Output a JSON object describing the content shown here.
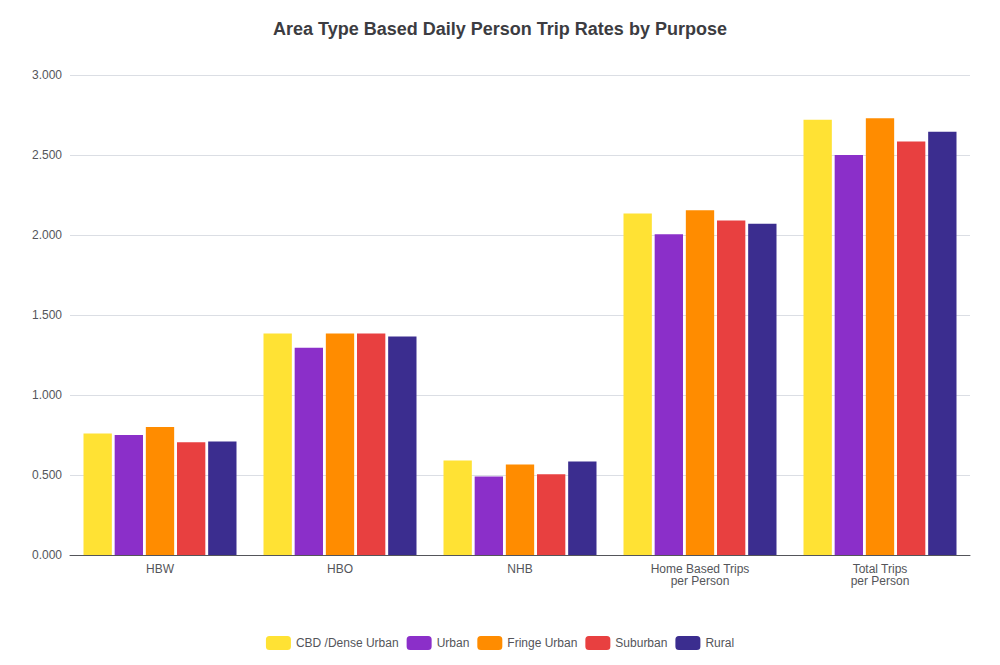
{
  "chart_data": {
    "type": "bar",
    "title": "Area Type Based Daily Person Trip Rates by Purpose",
    "categories": [
      "HBW",
      "HBO",
      "NHB",
      "Home Based Trips\nper Person",
      "Total Trips\nper Person"
    ],
    "series": [
      {
        "name": "CBD /Dense Urban",
        "color": "#FFE234",
        "values": [
          0.76,
          1.385,
          0.59,
          2.135,
          2.72
        ]
      },
      {
        "name": "Urban",
        "color": "#8B2FC9",
        "values": [
          0.75,
          1.295,
          0.49,
          2.005,
          2.5
        ]
      },
      {
        "name": "Fringe Urban",
        "color": "#FF8C00",
        "values": [
          0.8,
          1.385,
          0.565,
          2.155,
          2.73
        ]
      },
      {
        "name": "Suburban",
        "color": "#E84040",
        "values": [
          0.705,
          1.385,
          0.505,
          2.09,
          2.585
        ]
      },
      {
        "name": "Rural",
        "color": "#3B2D8F",
        "values": [
          0.71,
          1.365,
          0.585,
          2.07,
          2.645
        ]
      }
    ],
    "ylim": [
      0,
      3.0
    ],
    "yticks": [
      {
        "value": 0,
        "label": "0.000"
      },
      {
        "value": 0.5,
        "label": "0.500"
      },
      {
        "value": 1.0,
        "label": "1.000"
      },
      {
        "value": 1.5,
        "label": "1.500"
      },
      {
        "value": 2.0,
        "label": "2.000"
      },
      {
        "value": 2.5,
        "label": "2.500"
      },
      {
        "value": 3.0,
        "label": "3.000"
      }
    ],
    "grid": true,
    "legend": "bottom"
  }
}
